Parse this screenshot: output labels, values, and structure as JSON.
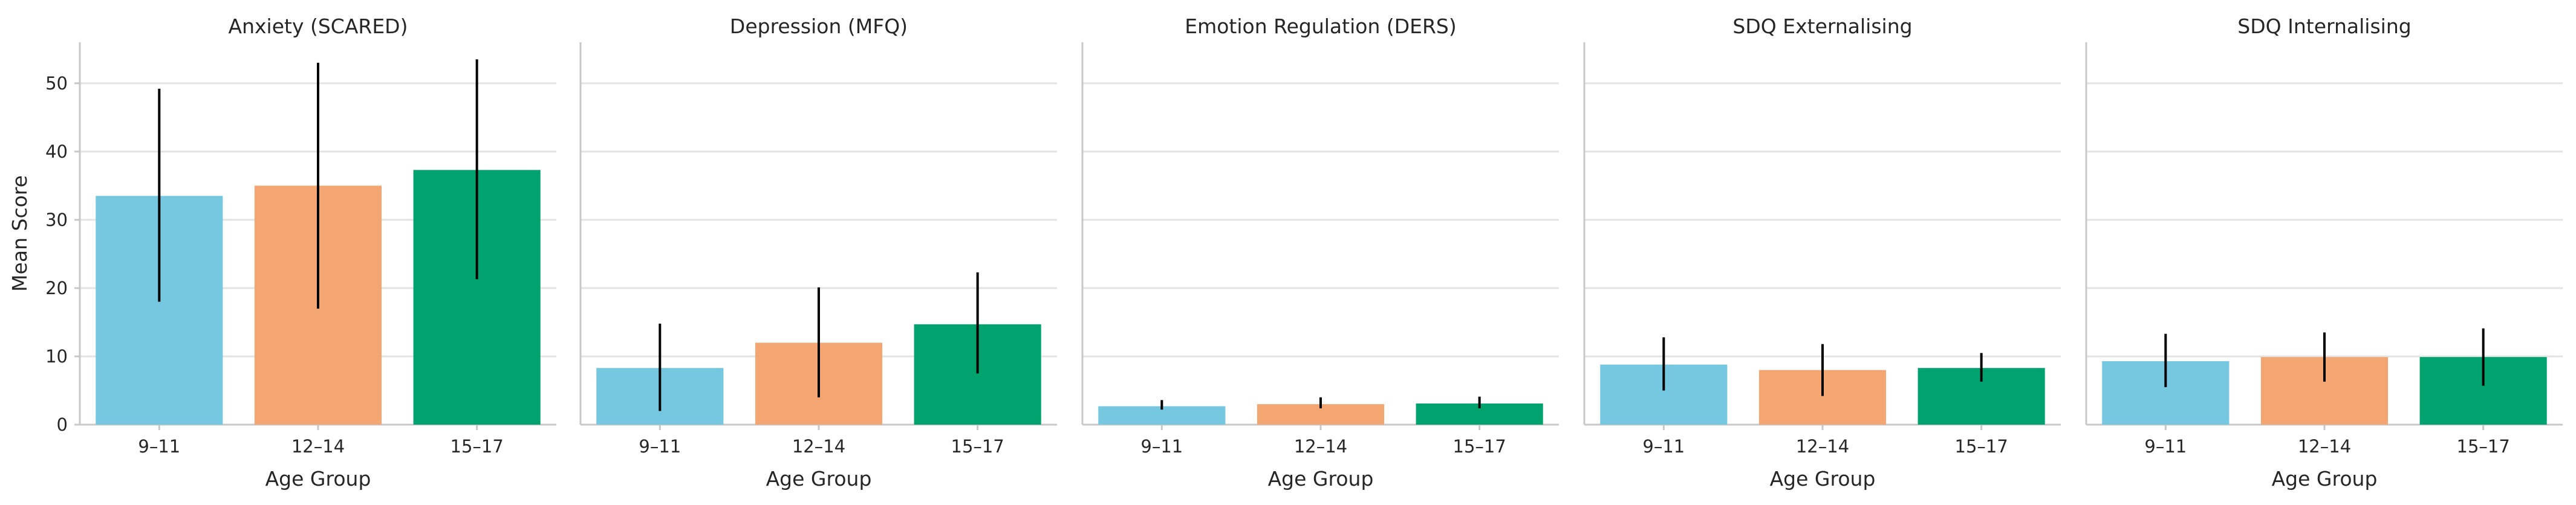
{
  "chart_data": {
    "type": "bar",
    "ylabel": "Mean Score",
    "xlabel": "Age Group",
    "ylim": [
      0,
      56
    ],
    "yticks": [
      0,
      10,
      20,
      30,
      40,
      50
    ],
    "grid": "horizontal",
    "shared_y": true,
    "categories": [
      "9–11",
      "12–14",
      "15–17"
    ],
    "colors": [
      "#76c8e0",
      "#f4a672",
      "#00a36d"
    ],
    "panels": [
      {
        "title": "Anxiety (SCARED)",
        "values": [
          33.5,
          35.0,
          37.3
        ],
        "error_low": [
          18.0,
          17.0,
          21.3
        ],
        "error_high": [
          49.2,
          53.0,
          53.5
        ]
      },
      {
        "title": "Depression (MFQ)",
        "values": [
          8.3,
          12.0,
          14.7
        ],
        "error_low": [
          2.0,
          4.0,
          7.5
        ],
        "error_high": [
          14.8,
          20.1,
          22.3
        ]
      },
      {
        "title": "Emotion Regulation (DERS)",
        "values": [
          2.7,
          3.0,
          3.1
        ],
        "error_low": [
          2.2,
          2.4,
          2.4
        ],
        "error_high": [
          3.6,
          4.0,
          4.1
        ]
      },
      {
        "title": "SDQ Externalising",
        "values": [
          8.8,
          8.0,
          8.3
        ],
        "error_low": [
          5.0,
          4.2,
          6.3
        ],
        "error_high": [
          12.8,
          11.8,
          10.5
        ]
      },
      {
        "title": "SDQ Internalising",
        "values": [
          9.3,
          9.9,
          9.9
        ],
        "error_low": [
          5.5,
          6.3,
          5.7
        ],
        "error_high": [
          13.3,
          13.5,
          14.1
        ]
      }
    ]
  }
}
